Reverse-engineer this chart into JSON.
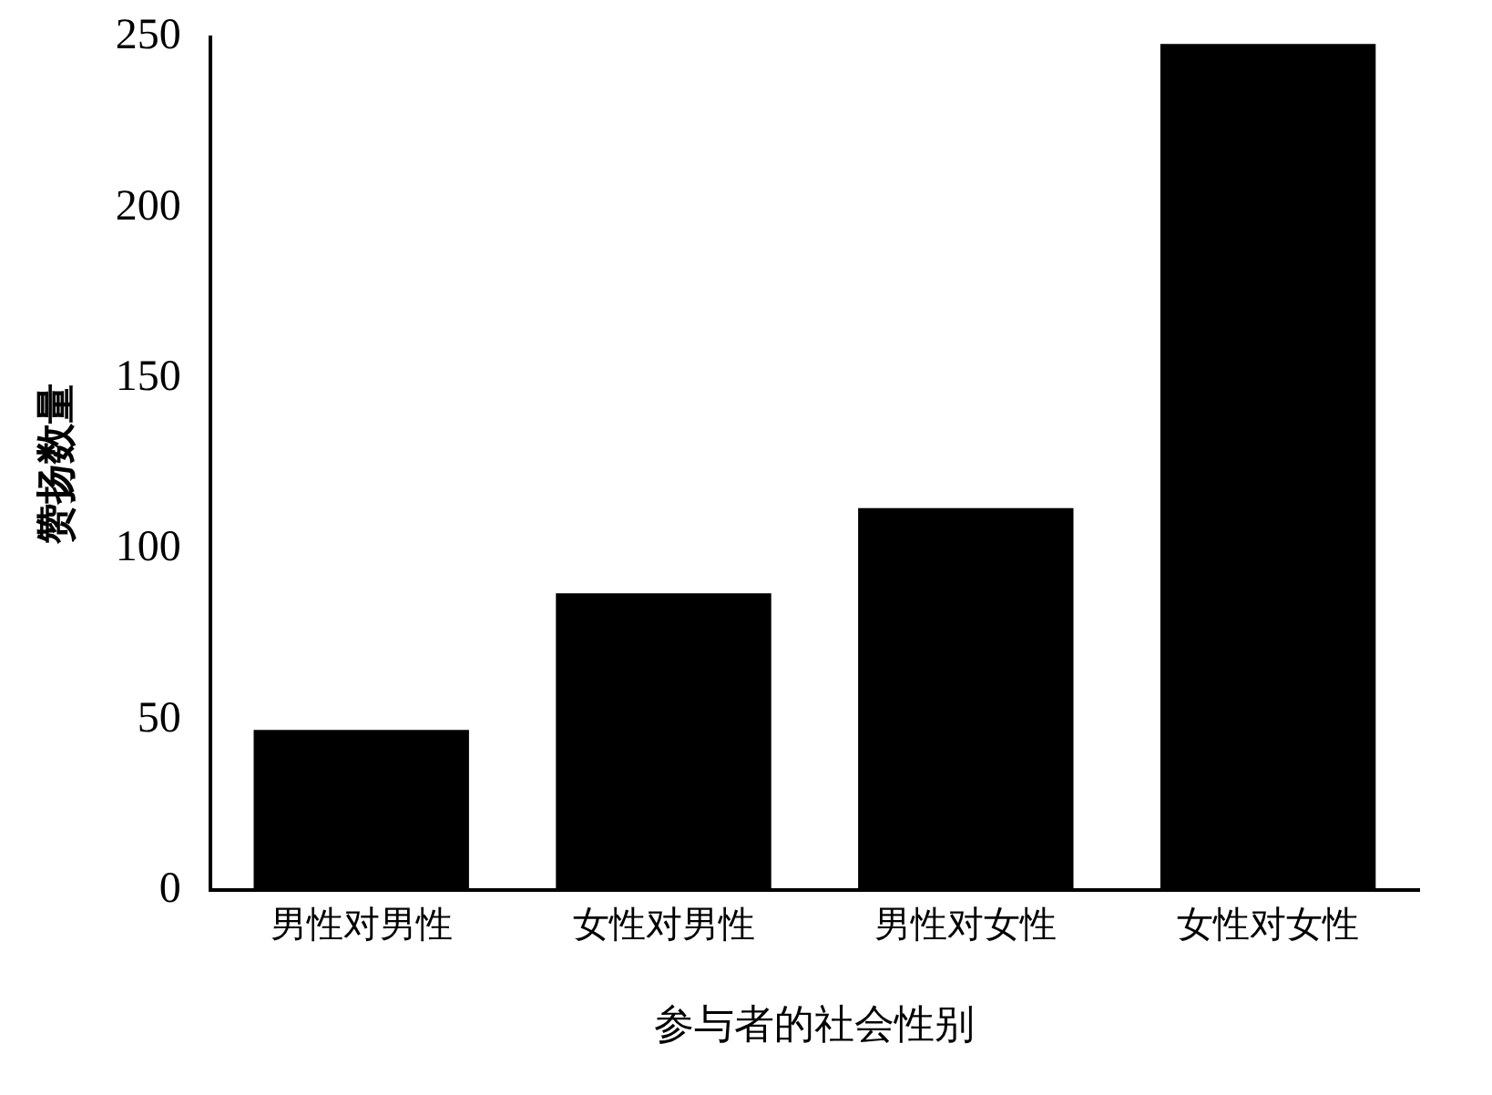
{
  "chart_data": {
    "type": "bar",
    "xlabel": "参与者的社会性别",
    "ylabel": "赞扬数量",
    "categories": [
      "男性对男性",
      "女性对男性",
      "男性对女性",
      "女性对女性"
    ],
    "values": [
      47,
      87,
      112,
      248
    ],
    "color": "#000000",
    "ylim": [
      0,
      250
    ],
    "yticks": [
      0,
      50,
      100,
      150,
      200,
      250
    ],
    "grid": false,
    "legend": false
  }
}
